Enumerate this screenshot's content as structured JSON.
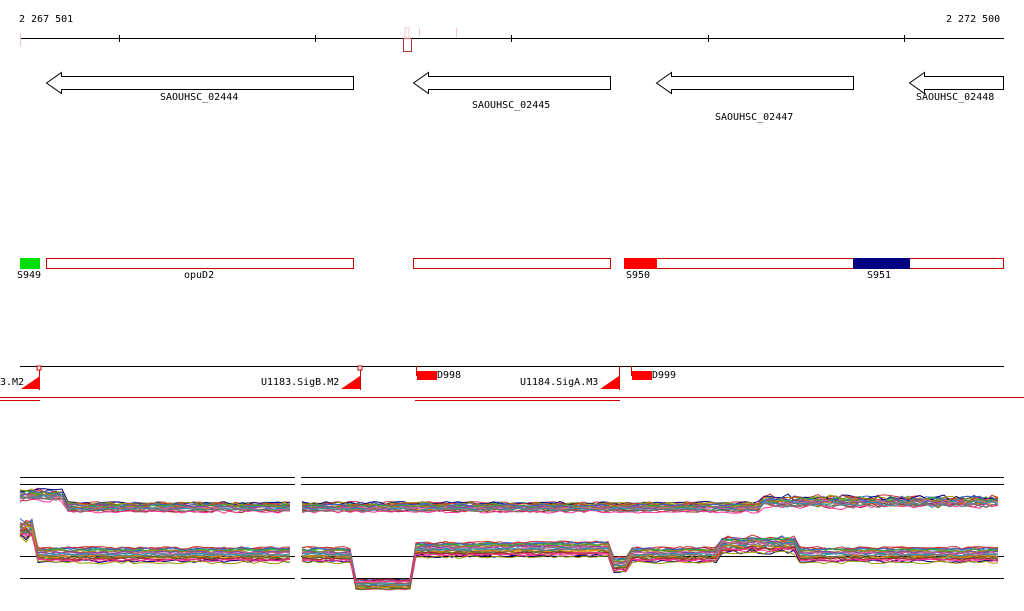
{
  "ruler": {
    "start": "2 267 501",
    "end": "2 272 500"
  },
  "genes": [
    {
      "label": "SAOUHSC_02444",
      "icon": "left-arrow-icon"
    },
    {
      "label": "SAOUHSC_02445",
      "icon": "left-arrow-icon"
    },
    {
      "label": "SAOUHSC_02447",
      "icon": "left-arrow-icon"
    },
    {
      "label": "SAOUHSC_02448",
      "icon": "left-arrow-icon"
    }
  ],
  "segments": {
    "tags": [
      {
        "label": "S949",
        "color": "#00dd00"
      },
      {
        "label": "S950",
        "color": "#ff0000"
      },
      {
        "label": "S951",
        "color": "#000080"
      }
    ],
    "operon": "opuD2"
  },
  "features": {
    "labels": [
      "3.M2",
      "U1183.SigB.M2",
      "D998",
      "U1184.SigA.M3",
      "D999"
    ],
    "accent": "#ff0000"
  }
}
